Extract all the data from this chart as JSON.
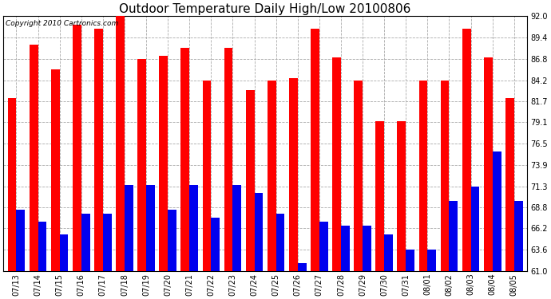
{
  "title": "Outdoor Temperature Daily High/Low 20100806",
  "copyright": "Copyright 2010 Cartronics.com",
  "labels": [
    "07/13",
    "07/14",
    "07/15",
    "07/16",
    "07/17",
    "07/18",
    "07/19",
    "07/20",
    "07/21",
    "07/22",
    "07/23",
    "07/24",
    "07/25",
    "07/26",
    "07/27",
    "07/28",
    "07/29",
    "07/30",
    "07/31",
    "08/01",
    "08/02",
    "08/03",
    "08/04",
    "08/05"
  ],
  "highs": [
    82.0,
    88.5,
    85.5,
    91.0,
    90.5,
    92.0,
    86.8,
    87.2,
    88.2,
    84.2,
    88.2,
    83.0,
    84.2,
    84.5,
    90.5,
    87.0,
    84.2,
    79.2,
    79.2,
    84.2,
    84.2,
    90.5,
    87.0,
    82.0
  ],
  "lows": [
    68.5,
    67.0,
    65.5,
    68.0,
    68.0,
    71.5,
    71.5,
    68.5,
    71.5,
    67.5,
    71.5,
    70.5,
    68.0,
    62.0,
    67.0,
    66.5,
    66.5,
    65.5,
    63.6,
    63.6,
    69.5,
    71.3,
    75.5,
    69.5
  ],
  "ymin": 61.0,
  "ymax": 92.0,
  "yticks": [
    61.0,
    63.6,
    66.2,
    68.8,
    71.3,
    73.9,
    76.5,
    79.1,
    81.7,
    84.2,
    86.8,
    89.4,
    92.0
  ],
  "bar_width": 0.4,
  "high_color": "#ff0000",
  "low_color": "#0000ee",
  "background_color": "#ffffff",
  "grid_color": "#aaaaaa",
  "title_fontsize": 11,
  "tick_fontsize": 7,
  "copyright_fontsize": 6.5,
  "figwidth": 6.9,
  "figheight": 3.75,
  "dpi": 100
}
